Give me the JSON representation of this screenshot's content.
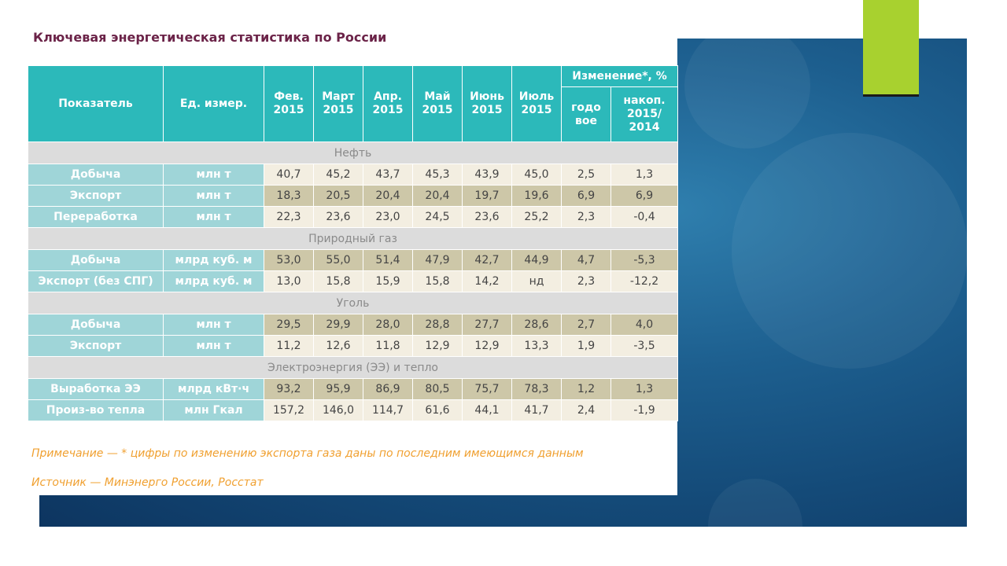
{
  "title": "Ключевая энергетическая статистика по России",
  "header": {
    "indicator": "Показатель",
    "unit": "Ед. измер.",
    "months": [
      {
        "l1": "Фев.",
        "l2": "2015"
      },
      {
        "l1": "Март",
        "l2": "2015"
      },
      {
        "l1": "Апр.",
        "l2": "2015"
      },
      {
        "l1": "Май",
        "l2": "2015"
      },
      {
        "l1": "Июнь",
        "l2": "2015"
      },
      {
        "l1": "Июль",
        "l2": "2015"
      }
    ],
    "change": "Изменение*, %",
    "yearly": {
      "l1": "годо",
      "l2": "вое"
    },
    "cumulative": {
      "l1": "накоп.",
      "l2": "2015/",
      "l3": "2014"
    }
  },
  "sections": [
    {
      "name": "Нефть",
      "rows": [
        {
          "name": "Добыча",
          "unit": "млн т",
          "values": [
            "40,7",
            "45,2",
            "43,7",
            "45,3",
            "43,9",
            "45,0",
            "2,5",
            "1,3"
          ]
        },
        {
          "name": "Экспорт",
          "unit": "млн т",
          "values": [
            "18,3",
            "20,5",
            "20,4",
            "20,4",
            "19,7",
            "19,6",
            "6,9",
            "6,9"
          ]
        },
        {
          "name": "Переработка",
          "unit": "млн т",
          "values": [
            "22,3",
            "23,6",
            "23,0",
            "24,5",
            "23,6",
            "25,2",
            "2,3",
            "-0,4"
          ]
        }
      ]
    },
    {
      "name": "Природный газ",
      "rows": [
        {
          "name": "Добыча",
          "unit": "млрд куб. м",
          "values": [
            "53,0",
            "55,0",
            "51,4",
            "47,9",
            "42,7",
            "44,9",
            "4,7",
            "-5,3"
          ]
        },
        {
          "name": "Экспорт (без СПГ)",
          "unit": "млрд куб. м",
          "values": [
            "13,0",
            "15,8",
            "15,9",
            "15,8",
            "14,2",
            "нд",
            "2,3",
            "-12,2"
          ]
        }
      ]
    },
    {
      "name": "Уголь",
      "rows": [
        {
          "name": "Добыча",
          "unit": "млн т",
          "values": [
            "29,5",
            "29,9",
            "28,0",
            "28,8",
            "27,7",
            "28,6",
            "2,7",
            "4,0"
          ]
        },
        {
          "name": "Экспорт",
          "unit": "млн т",
          "values": [
            "11,2",
            "12,6",
            "11,8",
            "12,9",
            "12,9",
            "13,3",
            "1,9",
            "-3,5"
          ]
        }
      ]
    },
    {
      "name": "Электроэнергия (ЭЭ) и тепло",
      "rows": [
        {
          "name": "Выработка ЭЭ",
          "unit": "млрд кВт·ч",
          "values": [
            "93,2",
            "95,9",
            "86,9",
            "80,5",
            "75,7",
            "78,3",
            "1,2",
            "1,3"
          ]
        },
        {
          "name": "Произ-во тепла",
          "unit": "млн Гкал",
          "values": [
            "157,2",
            "146,0",
            "114,7",
            "61,6",
            "44,1",
            "41,7",
            "2,4",
            "-1,9"
          ]
        }
      ]
    }
  ],
  "note": "Примечание — * цифры по изменению экспорта газа даны по последним имеющимся данным",
  "source": "Источник — Минэнерго России, Росстат",
  "colors": {
    "header": "#2cb9ba",
    "label_cell": "#9fd5d8",
    "section": "#dcdcdc",
    "row_light": "#f3eee1",
    "row_dark": "#cdc7a8",
    "title": "#6b2348",
    "note": "#f0a030",
    "accent": "#a8d12f",
    "background": "#144a78"
  }
}
